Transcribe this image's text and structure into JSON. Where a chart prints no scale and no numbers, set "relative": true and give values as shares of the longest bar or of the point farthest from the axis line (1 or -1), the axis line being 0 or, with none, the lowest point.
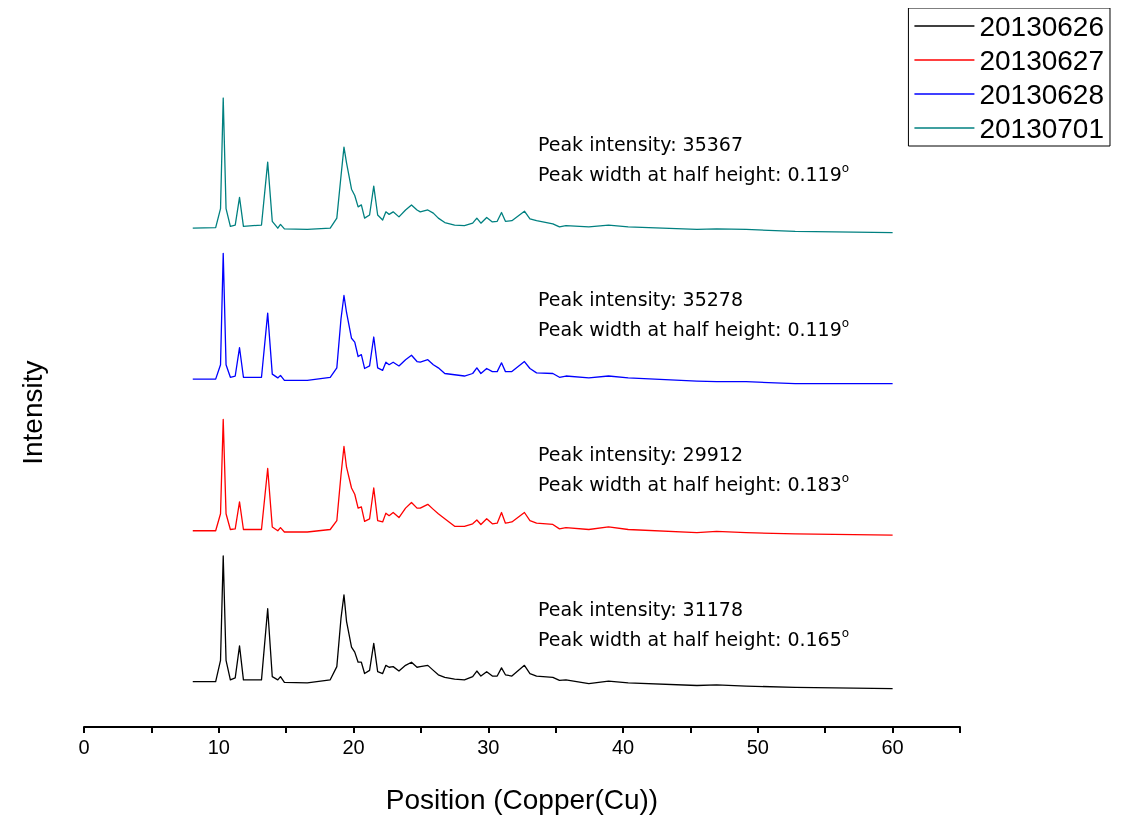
{
  "chart_data": {
    "type": "line",
    "relative": true,
    "xlabel": "Position (Copper(Cu))",
    "ylabel": "Intensity",
    "xlim": [
      0,
      65
    ],
    "xticks": [
      0,
      {
        "value": 5,
        "label": null
      },
      10,
      {
        "value": 15,
        "label": null
      },
      20,
      {
        "value": 25,
        "label": null
      },
      30,
      {
        "value": 35,
        "label": null
      },
      40,
      {
        "value": 45,
        "label": null
      },
      50,
      {
        "value": 55,
        "label": null
      },
      60,
      {
        "value": 65,
        "label": null
      }
    ],
    "x": [
      8.07,
      9.77,
      10.13,
      10.33,
      10.54,
      10.86,
      11.22,
      11.54,
      11.83,
      13.17,
      13.63,
      13.97,
      14.38,
      14.58,
      14.87,
      16.57,
      18.27,
      18.76,
      19.07,
      19.29,
      19.48,
      19.85,
      20.09,
      20.34,
      20.58,
      20.82,
      21.19,
      21.5,
      21.79,
      22.16,
      22.4,
      22.64,
      22.94,
      23.37,
      23.86,
      24.3,
      24.71,
      24.95,
      25.51,
      25.92,
      26.29,
      26.77,
      27.5,
      28.23,
      28.84,
      29.15,
      29.45,
      29.88,
      30.3,
      30.66,
      30.98,
      31.27,
      31.75,
      32.68,
      33.09,
      33.58,
      34.79,
      35.28,
      35.76,
      37.46,
      38.92,
      40.38,
      45.48,
      46.94,
      49.13,
      52.77,
      60
    ],
    "series": [
      {
        "name": "20130626",
        "color": "#000000",
        "values": [
          0.072,
          0.072,
          0.106,
          0.272,
          0.106,
          0.075,
          0.078,
          0.129,
          0.075,
          0.075,
          0.188,
          0.08,
          0.075,
          0.08,
          0.071,
          0.07,
          0.075,
          0.096,
          0.173,
          0.21,
          0.168,
          0.127,
          0.119,
          0.103,
          0.103,
          0.085,
          0.09,
          0.133,
          0.088,
          0.085,
          0.098,
          0.095,
          0.096,
          0.089,
          0.098,
          0.103,
          0.095,
          0.096,
          0.098,
          0.09,
          0.083,
          0.079,
          0.076,
          0.075,
          0.08,
          0.089,
          0.081,
          0.088,
          0.081,
          0.081,
          0.094,
          0.083,
          0.081,
          0.098,
          0.085,
          0.081,
          0.079,
          0.074,
          0.075,
          0.069,
          0.073,
          0.07,
          0.066,
          0.067,
          0.065,
          0.063,
          0.061
        ]
      },
      {
        "name": "20130627",
        "color": "#ff0000",
        "values": [
          0.312,
          0.312,
          0.339,
          0.489,
          0.339,
          0.314,
          0.315,
          0.358,
          0.314,
          0.314,
          0.411,
          0.318,
          0.312,
          0.317,
          0.31,
          0.31,
          0.314,
          0.328,
          0.401,
          0.446,
          0.413,
          0.38,
          0.37,
          0.348,
          0.35,
          0.327,
          0.331,
          0.38,
          0.328,
          0.326,
          0.34,
          0.336,
          0.341,
          0.333,
          0.348,
          0.357,
          0.348,
          0.348,
          0.354,
          0.346,
          0.339,
          0.331,
          0.319,
          0.319,
          0.323,
          0.329,
          0.322,
          0.331,
          0.323,
          0.324,
          0.341,
          0.324,
          0.326,
          0.341,
          0.328,
          0.324,
          0.322,
          0.315,
          0.317,
          0.314,
          0.318,
          0.314,
          0.309,
          0.311,
          0.309,
          0.307,
          0.305
        ]
      },
      {
        "name": "20130628",
        "color": "#0000ff",
        "values": [
          0.553,
          0.553,
          0.576,
          0.753,
          0.576,
          0.556,
          0.558,
          0.603,
          0.556,
          0.556,
          0.658,
          0.561,
          0.555,
          0.559,
          0.551,
          0.551,
          0.556,
          0.571,
          0.649,
          0.686,
          0.659,
          0.618,
          0.612,
          0.589,
          0.592,
          0.57,
          0.574,
          0.62,
          0.571,
          0.567,
          0.58,
          0.576,
          0.58,
          0.574,
          0.584,
          0.591,
          0.581,
          0.58,
          0.584,
          0.576,
          0.571,
          0.562,
          0.56,
          0.558,
          0.562,
          0.571,
          0.562,
          0.57,
          0.565,
          0.565,
          0.579,
          0.565,
          0.565,
          0.581,
          0.57,
          0.563,
          0.562,
          0.556,
          0.558,
          0.555,
          0.558,
          0.555,
          0.55,
          0.549,
          0.549,
          0.546,
          0.546
        ]
      },
      {
        "name": "20130701",
        "color": "#008080",
        "values": [
          0.793,
          0.794,
          0.824,
          1.0,
          0.824,
          0.796,
          0.798,
          0.842,
          0.796,
          0.798,
          0.898,
          0.804,
          0.793,
          0.799,
          0.792,
          0.791,
          0.793,
          0.809,
          0.876,
          0.922,
          0.897,
          0.855,
          0.845,
          0.827,
          0.83,
          0.809,
          0.814,
          0.86,
          0.814,
          0.806,
          0.819,
          0.815,
          0.819,
          0.811,
          0.822,
          0.83,
          0.822,
          0.819,
          0.822,
          0.817,
          0.809,
          0.802,
          0.798,
          0.797,
          0.801,
          0.809,
          0.801,
          0.81,
          0.803,
          0.804,
          0.818,
          0.804,
          0.805,
          0.82,
          0.808,
          0.805,
          0.8,
          0.795,
          0.797,
          0.795,
          0.798,
          0.795,
          0.791,
          0.792,
          0.791,
          0.788,
          0.786
        ]
      }
    ],
    "annotations": [
      "Peak intensity: 35367\nPeak width at half height: 0.119$^{o}$",
      "Peak intensity: 35278\nPeak width at half height: 0.119$^{o}$",
      "Peak intensity: 29912\nPeak width at half height: 0.183$^{o}$",
      "Peak intensity: 31178\nPeak width at half height: 0.165$^{o}$"
    ],
    "legend": "top right",
    "grid": false
  }
}
